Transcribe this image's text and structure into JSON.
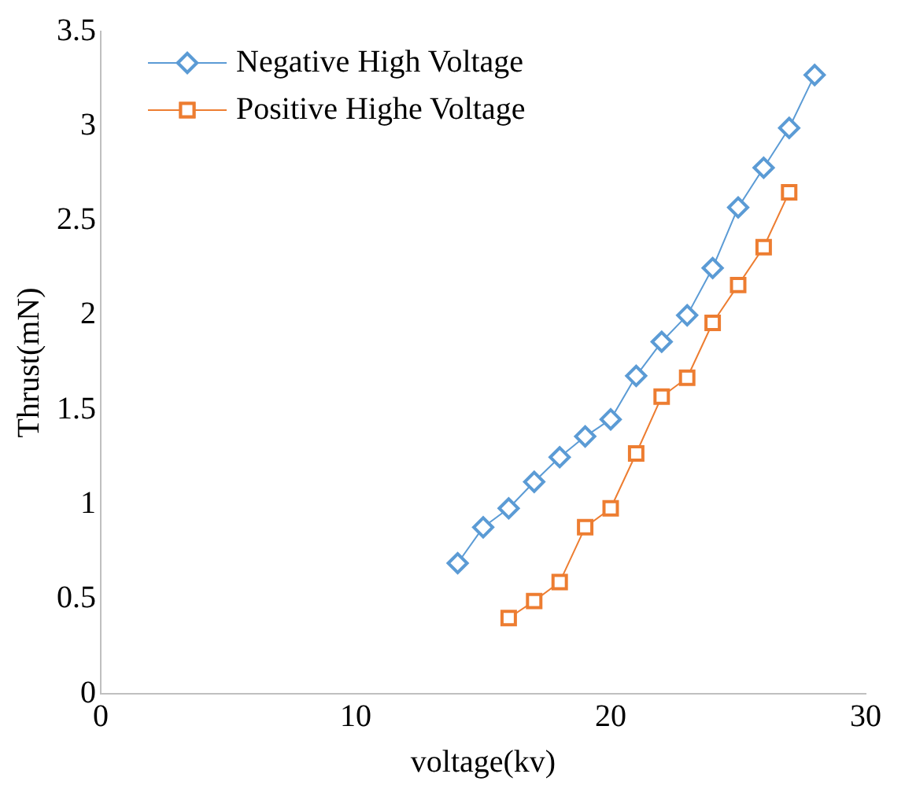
{
  "chart_data": {
    "type": "line",
    "xlabel": "voltage(kv)",
    "ylabel": "Thrust(mN)",
    "xlim": [
      0,
      30
    ],
    "xticks": [
      0,
      10,
      20,
      30
    ],
    "ylim": [
      0,
      3.5
    ],
    "yticks": [
      0,
      0.5,
      1,
      1.5,
      2,
      2.5,
      3,
      3.5
    ],
    "grid": false,
    "legend": "top left",
    "series": [
      {
        "name": "Negative High Voltage",
        "color": "#5b9bd5",
        "marker": "diamond",
        "x": [
          14,
          15,
          16,
          17,
          18,
          19,
          20,
          21,
          22,
          23,
          24,
          25,
          26,
          27,
          28
        ],
        "values": [
          0.69,
          0.88,
          0.98,
          1.12,
          1.25,
          1.36,
          1.45,
          1.68,
          1.86,
          2.0,
          2.25,
          2.57,
          2.78,
          2.99,
          3.27
        ]
      },
      {
        "name": "Positive Highe Voltage",
        "color": "#ed7d31",
        "marker": "square",
        "x": [
          16,
          17,
          18,
          19,
          20,
          21,
          22,
          23,
          24,
          25,
          26,
          27
        ],
        "values": [
          0.4,
          0.49,
          0.59,
          0.88,
          0.98,
          1.27,
          1.57,
          1.67,
          1.96,
          2.16,
          2.36,
          2.65
        ]
      }
    ]
  }
}
